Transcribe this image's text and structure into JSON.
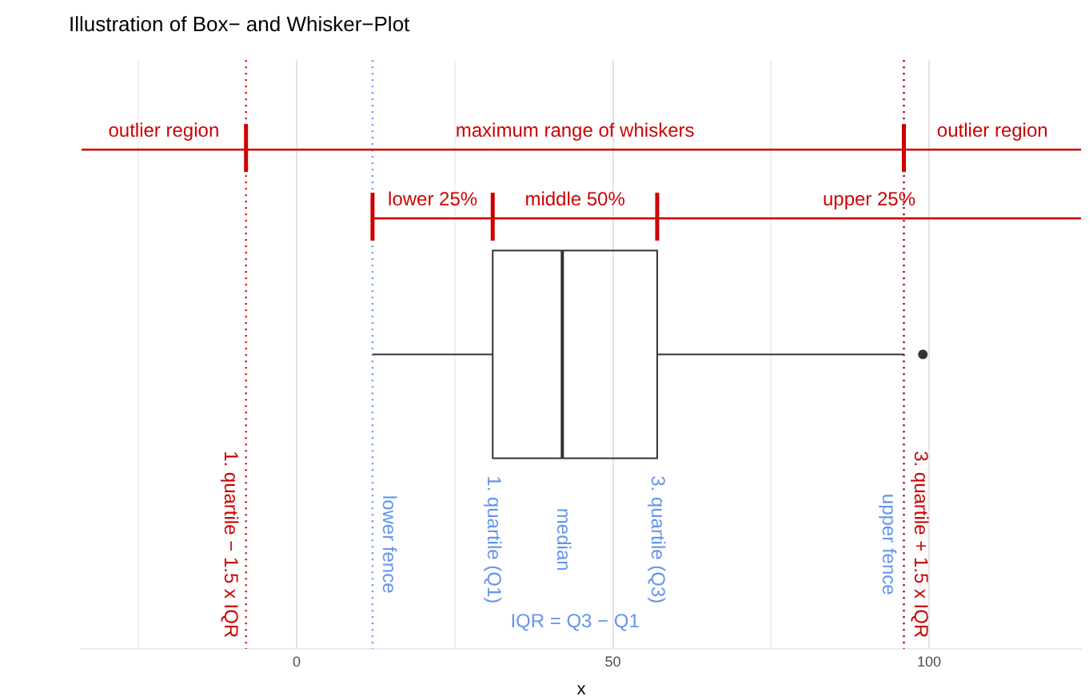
{
  "chart_data": {
    "type": "box",
    "title": "Illustration of Box− and Whisker−Plot",
    "xlabel": "x",
    "orientation": "horizontal",
    "categories": [
      null
    ],
    "boxes": [
      {
        "low": 12,
        "q1": 31,
        "median": 42,
        "q3": 57,
        "high": 96,
        "outliers": [
          99
        ]
      }
    ],
    "xlim": [
      -34,
      124
    ],
    "xticks": [
      {
        "value": -25,
        "label": null
      },
      0,
      {
        "value": 25,
        "label": null
      },
      50,
      {
        "value": 75,
        "label": null
      },
      100
    ],
    "tick_labels": "x",
    "grid": "x",
    "legend": false,
    "marker": "circle",
    "ref_lines": [
      {
        "axis": "x",
        "value": -8,
        "label": "1. quartile − 1.5 x IQR",
        "color": "#cd0000",
        "line_style": "dotted"
      },
      {
        "axis": "x",
        "value": 12,
        "label": "lower fence",
        "color": "#6495ed",
        "line_style": "dotted"
      },
      {
        "axis": "x",
        "value": 96,
        "label": "upper fence",
        "color": "#6495ed",
        "line_style": "dotted"
      },
      {
        "axis": "x",
        "value": 96,
        "label": "3. quartile + 1.5 x IQR",
        "color": "#cd0000",
        "line_style": "dotted"
      }
    ],
    "annotations": [
      "outlier region",
      "maximum range of whiskers",
      "outlier region",
      "lower 25%",
      "middle 50%",
      "upper 25%",
      "1. quartile (Q1)",
      "median",
      "3. quartile (Q3)",
      "IQR = Q3 − Q1"
    ]
  }
}
